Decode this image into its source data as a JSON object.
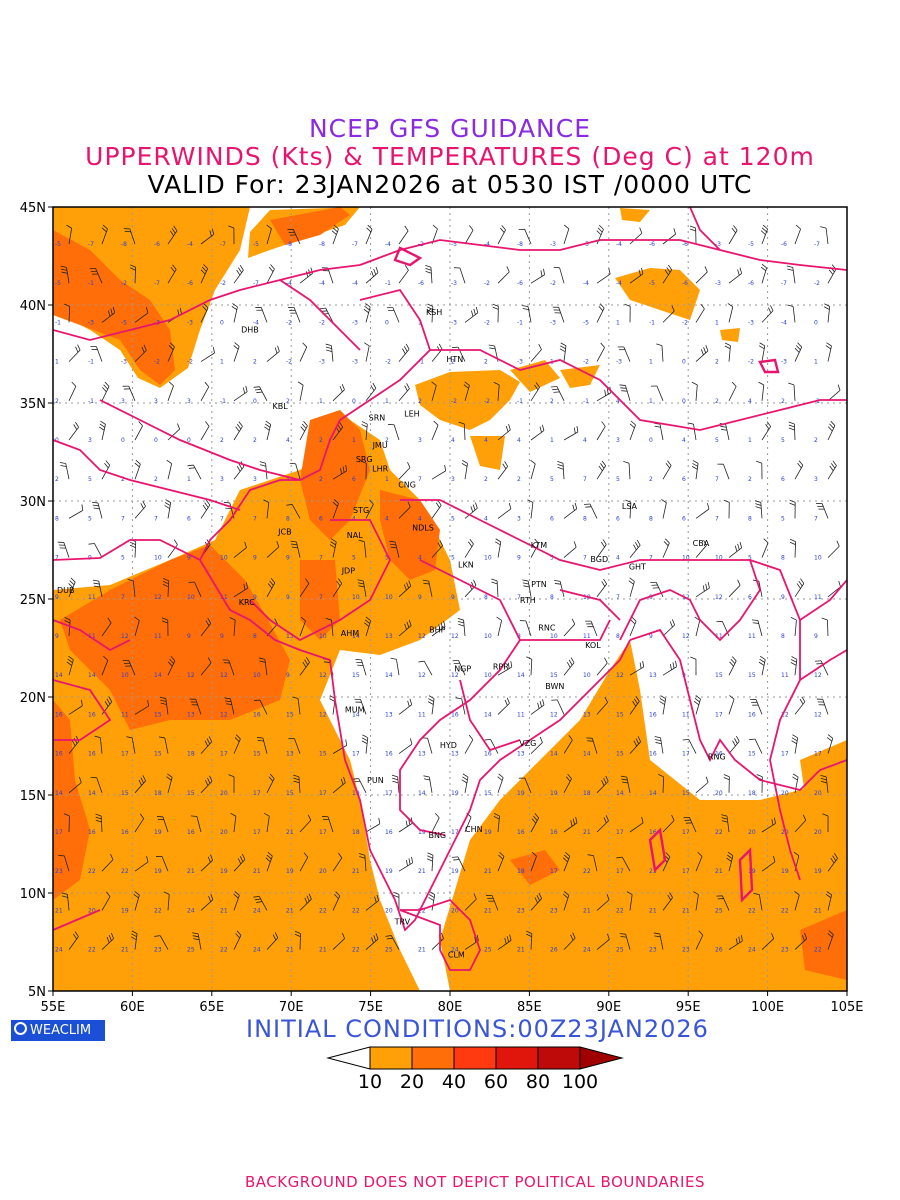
{
  "title": {
    "line1": "NCEP GFS GUIDANCE",
    "line2": "UPPERWINDS (Kts) & TEMPERATURES (Deg C) at 120m",
    "line3": "VALID For: 23JAN2026 at 0530 IST /0000 UTC"
  },
  "axes": {
    "lat_labels": [
      "45N",
      "40N",
      "35N",
      "30N",
      "25N",
      "20N",
      "15N",
      "10N",
      "5N"
    ],
    "lon_labels": [
      "55E",
      "60E",
      "65E",
      "70E",
      "75E",
      "80E",
      "85E",
      "90E",
      "95E",
      "100E",
      "105E"
    ],
    "lat_range": [
      5,
      45
    ],
    "lon_range": [
      55,
      105
    ]
  },
  "cities": [
    {
      "name": "KSH",
      "lon": 79.0,
      "lat": 39.5
    },
    {
      "name": "DHB",
      "lon": 67.4,
      "lat": 38.6
    },
    {
      "name": "HTN",
      "lon": 80.3,
      "lat": 37.1
    },
    {
      "name": "KBL",
      "lon": 69.3,
      "lat": 34.7
    },
    {
      "name": "SRN",
      "lon": 75.4,
      "lat": 34.1
    },
    {
      "name": "LEH",
      "lon": 77.6,
      "lat": 34.3
    },
    {
      "name": "JMU",
      "lon": 75.6,
      "lat": 32.7
    },
    {
      "name": "SRG",
      "lon": 74.6,
      "lat": 32.0
    },
    {
      "name": "LHR",
      "lon": 75.6,
      "lat": 31.5
    },
    {
      "name": "CNG",
      "lon": 77.3,
      "lat": 30.7
    },
    {
      "name": "STG",
      "lon": 74.4,
      "lat": 29.4
    },
    {
      "name": "NDLS",
      "lon": 78.3,
      "lat": 28.5
    },
    {
      "name": "LSA",
      "lon": 91.3,
      "lat": 29.6
    },
    {
      "name": "JCB",
      "lon": 69.6,
      "lat": 28.3
    },
    {
      "name": "NAL",
      "lon": 74.0,
      "lat": 28.1
    },
    {
      "name": "KTM",
      "lon": 85.6,
      "lat": 27.6
    },
    {
      "name": "CBA",
      "lon": 95.8,
      "lat": 27.7
    },
    {
      "name": "BGD",
      "lon": 89.4,
      "lat": 26.9
    },
    {
      "name": "GHT",
      "lon": 91.8,
      "lat": 26.5
    },
    {
      "name": "LKN",
      "lon": 81.0,
      "lat": 26.6
    },
    {
      "name": "JDP",
      "lon": 73.6,
      "lat": 26.3
    },
    {
      "name": "PTN",
      "lon": 85.6,
      "lat": 25.6
    },
    {
      "name": "DUB",
      "lon": 55.8,
      "lat": 25.3
    },
    {
      "name": "KRC",
      "lon": 67.2,
      "lat": 24.7
    },
    {
      "name": "RTH",
      "lon": 84.9,
      "lat": 24.8
    },
    {
      "name": "BHP",
      "lon": 79.2,
      "lat": 23.3
    },
    {
      "name": "AHM",
      "lon": 73.7,
      "lat": 23.1
    },
    {
      "name": "RNC",
      "lon": 86.1,
      "lat": 23.4
    },
    {
      "name": "KOL",
      "lon": 89.0,
      "lat": 22.5
    },
    {
      "name": "NGP",
      "lon": 80.8,
      "lat": 21.3
    },
    {
      "name": "RPR",
      "lon": 83.2,
      "lat": 21.4
    },
    {
      "name": "BWN",
      "lon": 86.6,
      "lat": 20.4
    },
    {
      "name": "MUM",
      "lon": 74.0,
      "lat": 19.2
    },
    {
      "name": "HYD",
      "lon": 79.9,
      "lat": 17.4
    },
    {
      "name": "VZG",
      "lon": 84.9,
      "lat": 17.5
    },
    {
      "name": "RNG",
      "lon": 96.8,
      "lat": 16.8
    },
    {
      "name": "PUN",
      "lon": 75.3,
      "lat": 15.6
    },
    {
      "name": "CHN",
      "lon": 81.5,
      "lat": 13.1
    },
    {
      "name": "BNG",
      "lon": 79.2,
      "lat": 12.8
    },
    {
      "name": "TRV",
      "lon": 77.0,
      "lat": 8.4
    },
    {
      "name": "CLM",
      "lon": 80.4,
      "lat": 6.7
    }
  ],
  "legend": {
    "labels": [
      "10",
      "20",
      "40",
      "60",
      "80",
      "100"
    ],
    "colors": [
      "#ffffff",
      "#ffa008",
      "#ff6e08",
      "#ff3a10",
      "#e0160c",
      "#bf0a0a",
      "#a00000"
    ]
  },
  "colors": {
    "boundary": "#e8156f",
    "grid": "#9a9a9a",
    "temp_text": "#2a3fd6",
    "shade_light": "#ffa008",
    "shade_mid": "#ff6e08"
  },
  "logo": {
    "label": "WEACLIM"
  },
  "init_conditions": "INITIAL CONDITIONS:00Z23JAN2026",
  "footer": "BACKGROUND DOES NOT DEPICT POLITICAL BOUNDARIES"
}
